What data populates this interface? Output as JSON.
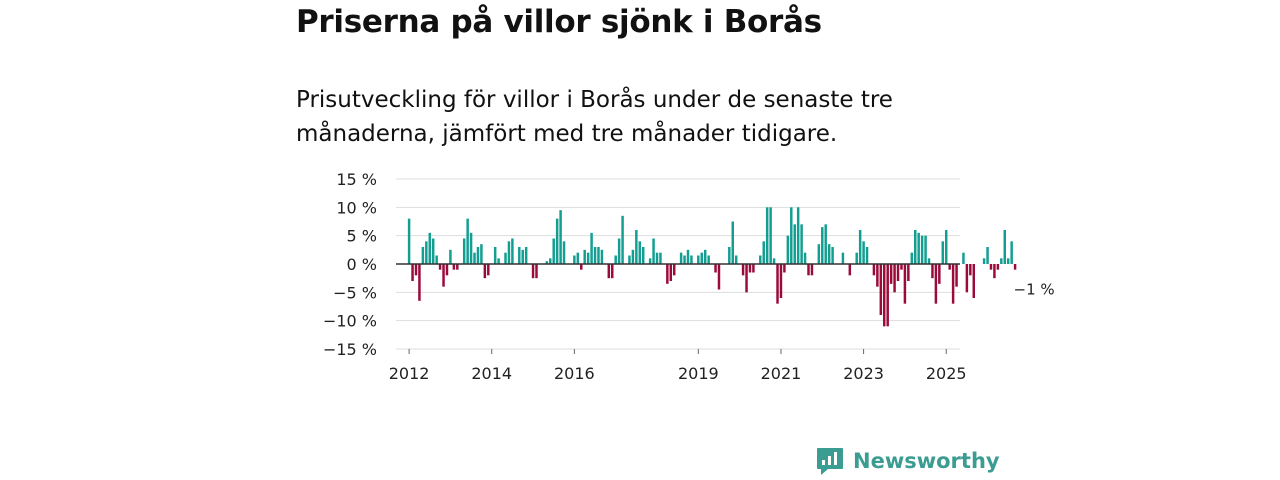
{
  "header": {
    "title": "Priserna på villor sjönk i Borås",
    "subtitle": "Prisutveckling för villor i Borås under de senaste tre månaderna, jämfört med tre månader tidigare."
  },
  "brand": {
    "name": "Newsworthy"
  },
  "colors": {
    "positive": "#139e92",
    "negative": "#9b0b3a",
    "grid": "#dddddd",
    "zero": "#333333",
    "brand": "#3b9c92"
  },
  "chart_data": {
    "type": "bar",
    "title": "Priserna på villor sjönk i Borås",
    "xlabel": "",
    "ylabel": "",
    "ylim": [
      -15,
      15
    ],
    "yticks": [
      15,
      10,
      5,
      0,
      -5,
      -10,
      -15
    ],
    "ytick_labels": [
      "15 %",
      "10 %",
      "5 %",
      "0 %",
      "−5 %",
      "−10 %",
      "−15 %"
    ],
    "x_start": "2012-01",
    "xlim_months": [
      -7,
      160
    ],
    "xticks": [
      {
        "label": "2012",
        "month_index": 0
      },
      {
        "label": "2014",
        "month_index": 24
      },
      {
        "label": "2016",
        "month_index": 48
      },
      {
        "label": "2019",
        "month_index": 84
      },
      {
        "label": "2021",
        "month_index": 108
      },
      {
        "label": "2023",
        "month_index": 132
      },
      {
        "label": "2025",
        "month_index": 156
      }
    ],
    "last_value_label": "−1 %",
    "values": [
      8,
      -3,
      -2,
      -6.5,
      3,
      4,
      5.5,
      4.5,
      1.5,
      -1,
      -4,
      -2,
      2.5,
      -1,
      -1,
      0,
      4.5,
      8,
      5.5,
      2,
      3,
      3.5,
      -2.5,
      -2,
      0,
      3,
      1,
      0,
      2,
      4,
      4.5,
      0,
      3,
      2.5,
      3,
      0,
      -2.5,
      -2.5,
      0,
      0,
      0.5,
      1,
      4.5,
      8,
      9.5,
      4,
      0,
      0,
      1.5,
      2,
      -1,
      2.5,
      2,
      5.5,
      3,
      3,
      2.5,
      0,
      -2.5,
      -2.5,
      1.5,
      4.5,
      8.5,
      0,
      1.5,
      2.5,
      6,
      4,
      3,
      0,
      1,
      4.5,
      2,
      2,
      0,
      -3.5,
      -3,
      -2,
      0,
      2,
      1.5,
      2.5,
      1.5,
      0,
      1.5,
      2,
      2.5,
      1.5,
      0,
      -1.5,
      -4.5,
      0,
      0,
      3,
      7.5,
      1.5,
      0,
      -2,
      -5,
      -1.5,
      -1.5,
      0,
      1.5,
      4,
      10,
      10,
      1,
      -7,
      -6,
      -1.5,
      5,
      10,
      7,
      10,
      7,
      2,
      -2,
      -2,
      0,
      3.5,
      6.5,
      7,
      3.5,
      3,
      0,
      0,
      2,
      0,
      -2,
      0,
      2,
      6,
      4,
      3,
      0,
      -2,
      -4,
      -9,
      -11,
      -11,
      -3.5,
      -5,
      -3,
      -1,
      -7,
      -3,
      2,
      6,
      5.5,
      5,
      5,
      1,
      -2.5,
      -7,
      -3.5,
      4,
      6,
      -1,
      -7,
      -4,
      0,
      2,
      -5,
      -2,
      -6,
      0,
      0,
      1,
      3,
      -1,
      -2.5,
      -1,
      1,
      6,
      1,
      4,
      -1
    ]
  }
}
